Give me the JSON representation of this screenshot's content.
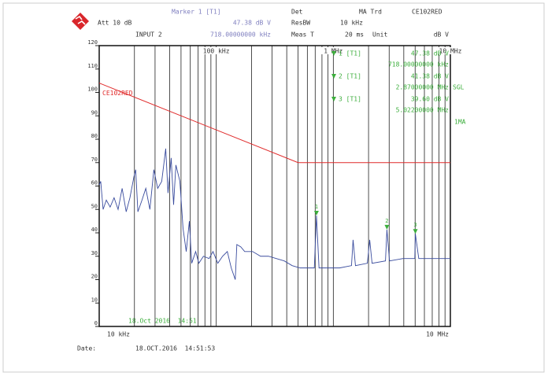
{
  "header": {
    "att": "Att 10 dB",
    "marker": "Marker 1 [T1]",
    "marker_level": "47.38 dB V",
    "input": "INPUT 2",
    "marker_freq": "718.00000000 kHz",
    "det_label": "Det",
    "det": "MA Trd",
    "rbw_label": "ResBW",
    "rbw": "10 kHz",
    "meas_label": "Meas T",
    "meas": "20 ms",
    "unit_label": "Unit",
    "unit": "dB V",
    "setup": "CE102RED"
  },
  "side": {
    "sgl": "SGL",
    "mode": "1MA"
  },
  "footer": {
    "date_label": "Date:",
    "date": "18.OCT.2016  14:51:53"
  },
  "chart_data": {
    "type": "line",
    "xscale": "log",
    "xlim": [
      10000,
      10000000
    ],
    "ylim": [
      0,
      120
    ],
    "yticks": [
      0,
      10,
      20,
      30,
      40,
      50,
      60,
      70,
      80,
      90,
      100,
      110,
      120
    ],
    "xgrid": [
      10000,
      20000,
      30000,
      40000,
      50000,
      60000,
      70000,
      80000,
      90000,
      100000,
      200000,
      300000,
      400000,
      500000,
      600000,
      700000,
      800000,
      900000,
      1000000,
      2000000,
      3000000,
      4000000,
      5000000,
      6000000,
      7000000,
      8000000,
      9000000,
      10000000
    ],
    "xlabels_bottom": [
      {
        "value": 10000,
        "label": "10 kHz"
      },
      {
        "value": 10000000,
        "label": "10 MHz"
      }
    ],
    "xlabels_top": [
      {
        "value": 100000,
        "label": "100 kHz"
      },
      {
        "value": 1000000,
        "label": "1 MHz"
      },
      {
        "value": 10000000,
        "label": "10 MHz"
      }
    ],
    "stamp": "18.Oct 2016  14:51",
    "series": [
      {
        "color": "#3a4c9e",
        "x": [
          10000,
          10300,
          10800,
          11500,
          12400,
          13400,
          14500,
          15700,
          17000,
          18300,
          19800,
          20500,
          21400,
          23200,
          25000,
          27100,
          29300,
          31600,
          34200,
          37000,
          38700,
          41200,
          43200,
          45200,
          48900,
          52000,
          55400,
          58900,
          61700,
          66700,
          71000,
          77700,
          86800,
          93800,
          103100,
          113200,
          124300,
          134300,
          145300,
          149900,
          162000,
          175000,
          204500,
          239000,
          279000,
          326000,
          381000,
          445000,
          520000,
          608000,
          688000,
          718000,
          755000,
          897000,
          1132000,
          1430000,
          1475000,
          1546000,
          1954000,
          2046000,
          2143000,
          2790000,
          2870000,
          3020000,
          3935000,
          4965000,
          5022000,
          5370000,
          6776000,
          7920000,
          10000000
        ],
        "values": [
          60.5,
          62,
          50,
          54,
          51,
          55,
          50,
          59,
          49,
          55,
          64,
          67,
          49,
          54,
          59,
          50,
          67,
          59,
          62,
          76,
          57,
          72,
          52,
          69,
          62,
          42,
          32,
          45,
          27,
          32,
          27,
          30,
          29,
          32,
          27,
          30,
          32,
          25,
          20,
          35,
          34,
          32,
          32,
          30,
          30,
          29,
          28,
          26,
          25,
          25,
          25,
          47.38,
          25,
          25,
          25,
          26,
          37,
          26,
          27,
          37,
          27,
          28,
          41.38,
          28,
          29,
          29,
          39.6,
          29,
          29,
          29,
          29
        ]
      },
      {
        "name": "CE102RED",
        "color": "#e02a2a",
        "x": [
          10000,
          500000,
          10000000
        ],
        "values": [
          104,
          70,
          70
        ]
      }
    ],
    "markers": [
      {
        "label": "1",
        "tag": "1 [T1]",
        "x": 718000,
        "y": 47.38,
        "level_label": "47.38 dB V",
        "freq_label": "718.00000000 kHz"
      },
      {
        "label": "2",
        "tag": "2 [T1]",
        "x": 2870000,
        "y": 41.38,
        "level_label": "41.38 dB V",
        "freq_label": "2.87000000 MHz"
      },
      {
        "label": "3",
        "tag": "3 [T1]",
        "x": 5022000,
        "y": 39.6,
        "level_label": "39.60 dB V",
        "freq_label": "5.02200000 MHz"
      }
    ],
    "marker_color": "#3cae3c"
  }
}
